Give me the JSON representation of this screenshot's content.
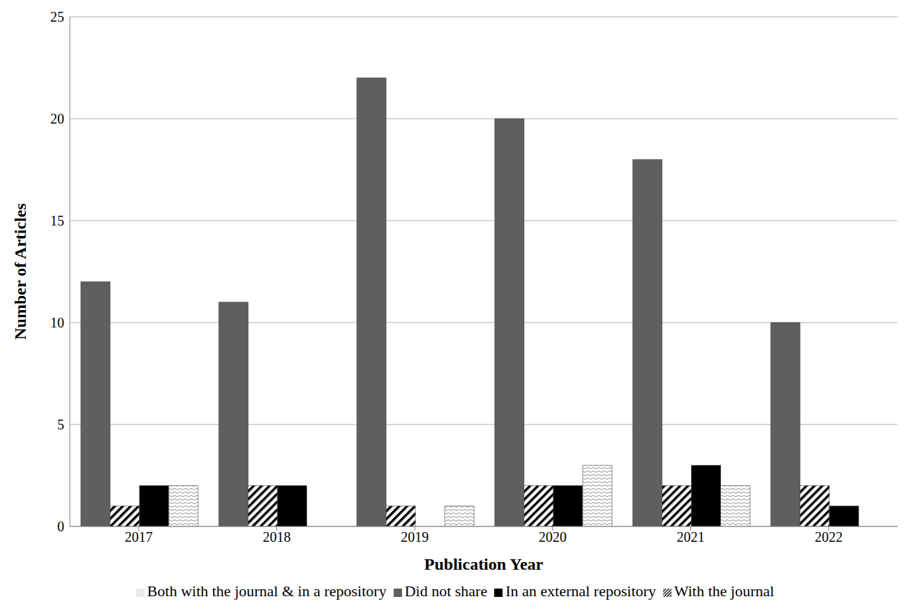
{
  "chart_data": {
    "type": "bar",
    "x_label": "Publication Year",
    "y_label": "Number of Articles",
    "categories": [
      "2017",
      "2018",
      "2019",
      "2020",
      "2021",
      "2022"
    ],
    "series": [
      {
        "name": "Did not share",
        "color": "#5f5f5f",
        "values": [
          12,
          11,
          22,
          20,
          18,
          10
        ]
      },
      {
        "name": "With the journal",
        "color": "#000000",
        "values": [
          1,
          2,
          1,
          2,
          2,
          2
        ]
      },
      {
        "name": "In an external repository",
        "color": "#000000",
        "values": [
          2,
          2,
          0,
          2,
          3,
          1
        ]
      },
      {
        "name": "Both with the journal & in a repository",
        "color": "#808080",
        "values": [
          2,
          0,
          1,
          3,
          2,
          0
        ]
      }
    ],
    "ylim": [
      0,
      25
    ],
    "yticks": [
      0,
      5,
      10,
      15,
      20,
      25
    ],
    "grid": true,
    "legend": "bottom"
  }
}
